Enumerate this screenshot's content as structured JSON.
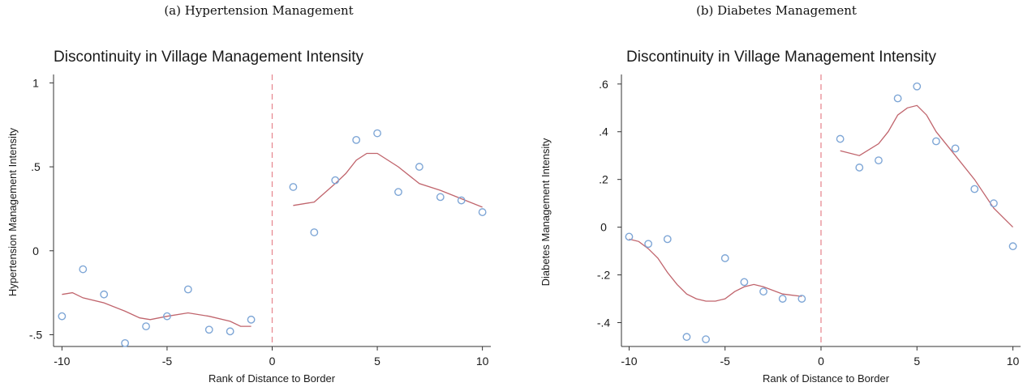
{
  "chart_data": [
    {
      "type": "scatter",
      "caption": "(a) Hypertension Management",
      "title": "Discontinuity in Village Management Intensity",
      "xlabel": "Rank of Distance to Border",
      "ylabel": "Hypertension Management Intensity",
      "xlim": [
        -10.4,
        10.4
      ],
      "ylim": [
        -0.57,
        1.05
      ],
      "xticks": [
        {
          "value": -10,
          "label": "-10"
        },
        {
          "value": -5,
          "label": "-5"
        },
        {
          "value": 0,
          "label": "0"
        },
        {
          "value": 5,
          "label": "5"
        },
        {
          "value": 10,
          "label": "10"
        }
      ],
      "yticks": [
        {
          "value": -0.5,
          "label": "-.5"
        },
        {
          "value": 0,
          "label": "0"
        },
        {
          "value": 0.5,
          "label": ".5"
        },
        {
          "value": 1,
          "label": "1"
        }
      ],
      "cutoff": 0,
      "points": [
        {
          "x": -10,
          "y": -0.39
        },
        {
          "x": -9,
          "y": -0.11
        },
        {
          "x": -8,
          "y": -0.26
        },
        {
          "x": -7,
          "y": -0.55
        },
        {
          "x": -6,
          "y": -0.45
        },
        {
          "x": -5,
          "y": -0.39
        },
        {
          "x": -4,
          "y": -0.23
        },
        {
          "x": -3,
          "y": -0.47
        },
        {
          "x": -2,
          "y": -0.48
        },
        {
          "x": -1,
          "y": -0.41
        },
        {
          "x": 1,
          "y": 0.38
        },
        {
          "x": 2,
          "y": 0.11
        },
        {
          "x": 3,
          "y": 0.42
        },
        {
          "x": 4,
          "y": 0.66
        },
        {
          "x": 5,
          "y": 0.7
        },
        {
          "x": 6,
          "y": 0.35
        },
        {
          "x": 7,
          "y": 0.5
        },
        {
          "x": 8,
          "y": 0.32
        },
        {
          "x": 9,
          "y": 0.3
        },
        {
          "x": 10,
          "y": 0.23
        }
      ],
      "fit_left": [
        {
          "x": -10,
          "y": -0.26
        },
        {
          "x": -9.5,
          "y": -0.25
        },
        {
          "x": -9,
          "y": -0.28
        },
        {
          "x": -8,
          "y": -0.31
        },
        {
          "x": -7,
          "y": -0.36
        },
        {
          "x": -6.3,
          "y": -0.4
        },
        {
          "x": -5.8,
          "y": -0.41
        },
        {
          "x": -5,
          "y": -0.39
        },
        {
          "x": -4,
          "y": -0.37
        },
        {
          "x": -3,
          "y": -0.39
        },
        {
          "x": -2,
          "y": -0.42
        },
        {
          "x": -1.5,
          "y": -0.45
        },
        {
          "x": -1,
          "y": -0.45
        }
      ],
      "fit_right": [
        {
          "x": 1,
          "y": 0.27
        },
        {
          "x": 2,
          "y": 0.29
        },
        {
          "x": 3,
          "y": 0.4
        },
        {
          "x": 3.5,
          "y": 0.46
        },
        {
          "x": 4,
          "y": 0.54
        },
        {
          "x": 4.5,
          "y": 0.58
        },
        {
          "x": 5,
          "y": 0.58
        },
        {
          "x": 6,
          "y": 0.5
        },
        {
          "x": 7,
          "y": 0.4
        },
        {
          "x": 8,
          "y": 0.36
        },
        {
          "x": 9,
          "y": 0.31
        },
        {
          "x": 10,
          "y": 0.26
        }
      ]
    },
    {
      "type": "scatter",
      "caption": "(b) Diabetes Management",
      "title": "Discontinuity in Village Management Intensity",
      "xlabel": "Rank of Distance to Border",
      "ylabel": "Diabetes Management Intensity",
      "xlim": [
        -10.4,
        10.4
      ],
      "ylim": [
        -0.5,
        0.64
      ],
      "xticks": [
        {
          "value": -10,
          "label": "-10"
        },
        {
          "value": -5,
          "label": "-5"
        },
        {
          "value": 0,
          "label": "0"
        },
        {
          "value": 5,
          "label": "5"
        },
        {
          "value": 10,
          "label": "10"
        }
      ],
      "yticks": [
        {
          "value": -0.4,
          "label": "-.4"
        },
        {
          "value": -0.2,
          "label": "-.2"
        },
        {
          "value": 0,
          "label": "0"
        },
        {
          "value": 0.2,
          "label": ".2"
        },
        {
          "value": 0.4,
          "label": ".4"
        },
        {
          "value": 0.6,
          "label": ".6"
        }
      ],
      "cutoff": 0,
      "points": [
        {
          "x": -10,
          "y": -0.04
        },
        {
          "x": -9,
          "y": -0.07
        },
        {
          "x": -8,
          "y": -0.05
        },
        {
          "x": -7,
          "y": -0.46
        },
        {
          "x": -6,
          "y": -0.47
        },
        {
          "x": -5,
          "y": -0.13
        },
        {
          "x": -4,
          "y": -0.23
        },
        {
          "x": -3,
          "y": -0.27
        },
        {
          "x": -2,
          "y": -0.3
        },
        {
          "x": -1,
          "y": -0.3
        },
        {
          "x": 1,
          "y": 0.37
        },
        {
          "x": 2,
          "y": 0.25
        },
        {
          "x": 3,
          "y": 0.28
        },
        {
          "x": 4,
          "y": 0.54
        },
        {
          "x": 5,
          "y": 0.59
        },
        {
          "x": 6,
          "y": 0.36
        },
        {
          "x": 7,
          "y": 0.33
        },
        {
          "x": 8,
          "y": 0.16
        },
        {
          "x": 9,
          "y": 0.1
        },
        {
          "x": 10,
          "y": -0.08
        }
      ],
      "fit_left": [
        {
          "x": -10,
          "y": -0.05
        },
        {
          "x": -9.5,
          "y": -0.06
        },
        {
          "x": -9,
          "y": -0.09
        },
        {
          "x": -8.5,
          "y": -0.13
        },
        {
          "x": -8,
          "y": -0.19
        },
        {
          "x": -7.5,
          "y": -0.24
        },
        {
          "x": -7,
          "y": -0.28
        },
        {
          "x": -6.5,
          "y": -0.3
        },
        {
          "x": -6,
          "y": -0.31
        },
        {
          "x": -5.5,
          "y": -0.31
        },
        {
          "x": -5,
          "y": -0.3
        },
        {
          "x": -4.5,
          "y": -0.27
        },
        {
          "x": -4,
          "y": -0.25
        },
        {
          "x": -3.5,
          "y": -0.24
        },
        {
          "x": -3,
          "y": -0.25
        },
        {
          "x": -2,
          "y": -0.28
        },
        {
          "x": -1,
          "y": -0.29
        }
      ],
      "fit_right": [
        {
          "x": 1,
          "y": 0.32
        },
        {
          "x": 2,
          "y": 0.3
        },
        {
          "x": 3,
          "y": 0.35
        },
        {
          "x": 3.5,
          "y": 0.4
        },
        {
          "x": 4,
          "y": 0.47
        },
        {
          "x": 4.5,
          "y": 0.5
        },
        {
          "x": 5,
          "y": 0.51
        },
        {
          "x": 5.5,
          "y": 0.47
        },
        {
          "x": 6,
          "y": 0.4
        },
        {
          "x": 7,
          "y": 0.3
        },
        {
          "x": 8,
          "y": 0.2
        },
        {
          "x": 9,
          "y": 0.08
        },
        {
          "x": 10,
          "y": 0.0
        }
      ]
    }
  ]
}
